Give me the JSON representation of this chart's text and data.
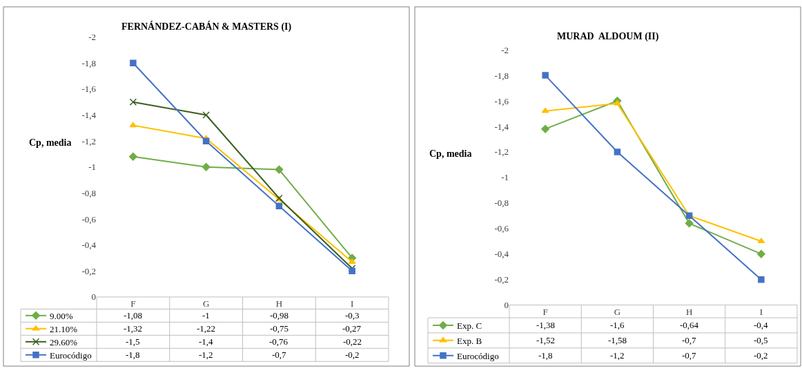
{
  "chart_data": [
    {
      "type": "line",
      "title": "FERNÁNDEZ-CABÁN & MASTERS (I)",
      "ylabel": "Cp, media",
      "categories": [
        "F",
        "G",
        "H",
        "I"
      ],
      "ylim": [
        0,
        -2
      ],
      "yticks": [
        0,
        {
          "value": -0.2,
          "label": "-0,2"
        },
        {
          "value": -0.4,
          "label": "-0,4"
        },
        {
          "value": -0.6,
          "label": "-0,6"
        },
        {
          "value": -0.8,
          "label": "-0,8"
        },
        -1,
        {
          "value": -1.2,
          "label": "-1,2"
        },
        {
          "value": -1.4,
          "label": "-1,4"
        },
        {
          "value": -1.6,
          "label": "-1,6"
        },
        {
          "value": -1.8,
          "label": "-1,8"
        },
        -2
      ],
      "legend": "bottom",
      "series": [
        {
          "name": "9.00%",
          "color": "#70ad47",
          "marker": "diamond",
          "values": [
            -1.08,
            -1,
            -0.98,
            -0.3
          ],
          "value_labels": [
            "-1,08",
            "-1",
            "-0,98",
            "-0,3"
          ]
        },
        {
          "name": "21.10%",
          "color": "#ffc000",
          "marker": "triangle",
          "values": [
            -1.32,
            -1.22,
            -0.75,
            -0.27
          ],
          "value_labels": [
            "-1,32",
            "-1,22",
            "-0,75",
            "-0,27"
          ]
        },
        {
          "name": "29.60%",
          "color": "#3a5e1e",
          "marker": "cross",
          "values": [
            -1.5,
            -1.4,
            -0.76,
            -0.22
          ],
          "value_labels": [
            "-1,5",
            "-1,4",
            "-0,76",
            "-0,22"
          ]
        },
        {
          "name": "Eurocódigo",
          "color": "#4472c4",
          "marker": "square",
          "values": [
            -1.8,
            -1.2,
            -0.7,
            -0.2
          ],
          "value_labels": [
            "-1,8",
            "-1,2",
            "-0,7",
            "-0,2"
          ]
        }
      ]
    },
    {
      "type": "line",
      "title": "MURAD  ALDOUM (II)",
      "ylabel": "Cp, media",
      "categories": [
        "F",
        "G",
        "H",
        "I"
      ],
      "ylim": [
        0,
        -2
      ],
      "yticks": [
        0,
        {
          "value": -0.2,
          "label": "-0,2"
        },
        {
          "value": -0.4,
          "label": "-0,4"
        },
        {
          "value": -0.6,
          "label": "-0,6"
        },
        {
          "value": -0.8,
          "label": "-0,8"
        },
        -1,
        {
          "value": -1.2,
          "label": "-1,2"
        },
        {
          "value": -1.4,
          "label": "-1,4"
        },
        {
          "value": -1.6,
          "label": "-1,6"
        },
        {
          "value": -1.8,
          "label": "-1,8"
        },
        -2
      ],
      "legend": "bottom",
      "series": [
        {
          "name": "Exp. C",
          "color": "#70ad47",
          "marker": "diamond",
          "values": [
            -1.38,
            -1.6,
            -0.64,
            -0.4
          ],
          "value_labels": [
            "-1,38",
            "-1,6",
            "-0,64",
            "-0,4"
          ]
        },
        {
          "name": "Exp. B",
          "color": "#ffc000",
          "marker": "triangle",
          "values": [
            -1.52,
            -1.58,
            -0.7,
            -0.5
          ],
          "value_labels": [
            "-1,52",
            "-1,58",
            "-0,7",
            "-0,5"
          ]
        },
        {
          "name": "Eurocódigo",
          "color": "#4472c4",
          "marker": "square",
          "values": [
            -1.8,
            -1.2,
            -0.7,
            -0.2
          ],
          "value_labels": [
            "-1,8",
            "-1,2",
            "-0,7",
            "-0,2"
          ]
        }
      ]
    }
  ]
}
